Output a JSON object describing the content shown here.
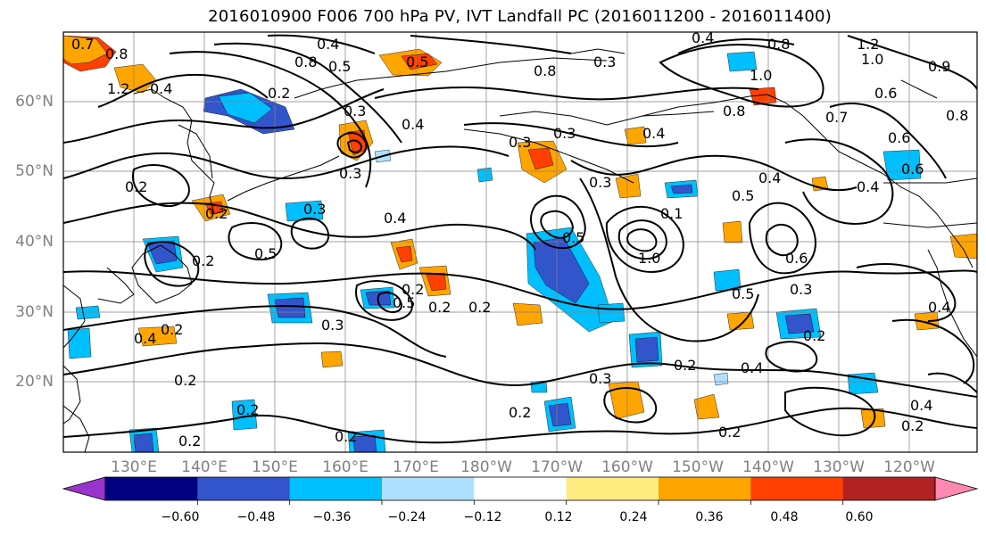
{
  "title": "2016010900 F006 700 hPa PV, IVT Landfall PC (2016011200 - 2016011400)",
  "lat_labels": [
    "60°N",
    "50°N",
    "40°N",
    "30°N",
    "20°N"
  ],
  "lon_labels": [
    "130°E",
    "140°E",
    "150°E",
    "160°E",
    "170°E",
    "180°W",
    "170°W",
    "160°W",
    "150°W",
    "140°W",
    "130°W",
    "120°W"
  ],
  "colorbar": {
    "colors": [
      "#9933cc",
      "#000080",
      "#3355cc",
      "#00bfff",
      "#b0e0ff",
      "#ffffff",
      "#ffec80",
      "#ffa500",
      "#ff4000",
      "#b22222",
      "#ff88b0"
    ],
    "ticks": [
      "−0.60",
      "−0.48",
      "−0.36",
      "−0.24",
      "−0.12",
      "0.12",
      "0.24",
      "0.36",
      "0.48",
      "0.60"
    ]
  },
  "contour_labels": [
    "0.7",
    "0.8",
    "0.4",
    "0.5",
    "0.8",
    "0.3",
    "0.4",
    "0.5",
    "0.2",
    "1.2",
    "0.4",
    "0.8",
    "1.0",
    "1.2",
    "0.4",
    "0.3",
    "0.9",
    "0.8",
    "1.0",
    "0.8",
    "0.6",
    "0.6",
    "0.4",
    "0.4",
    "0.3",
    "0.3",
    "0.5",
    "0.3",
    "0.4",
    "0.2",
    "0.1",
    "0.5",
    "0.6",
    "0.5",
    "0.3",
    "0.8",
    "1.0",
    "0.6",
    "0.3",
    "0.7",
    "0.4",
    "0.3",
    "0.5",
    "0.2",
    "0.2",
    "0.4",
    "0.2",
    "0.3",
    "0.2",
    "0.2",
    "0.2",
    "0.2",
    "0.3",
    "0.2",
    "0.4",
    "0.2",
    "0.2",
    "0.4",
    "0.4",
    "0.2",
    "0.2",
    "0.2",
    "0.2",
    "0.5",
    "0.2"
  ]
}
